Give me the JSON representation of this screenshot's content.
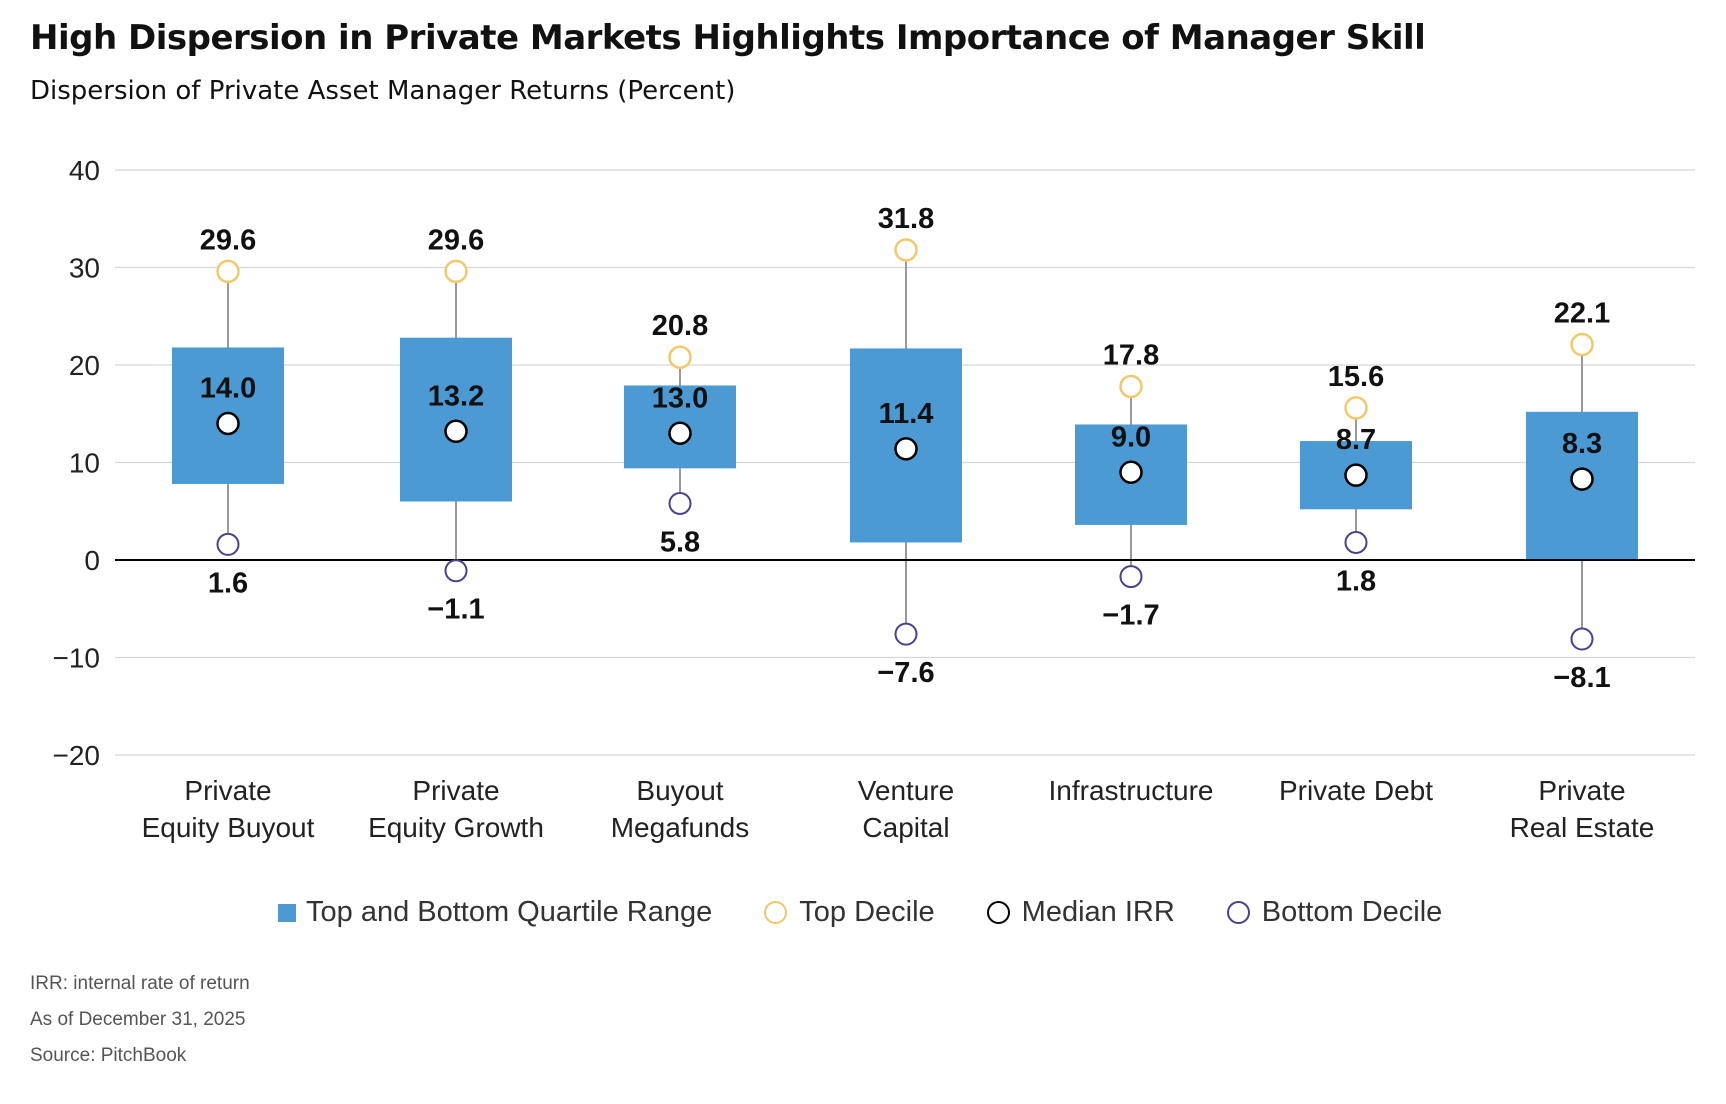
{
  "header": {
    "title": "High Dispersion in Private Markets Highlights Importance of Manager Skill",
    "subtitle": "Dispersion of Private Asset Manager Returns (Percent)"
  },
  "chart_data": {
    "type": "box",
    "ylim": [
      -20,
      40
    ],
    "yticks": [
      40,
      30,
      20,
      10,
      0,
      -10,
      -20
    ],
    "ytick_labels": [
      "40",
      "30",
      "20",
      "10",
      "0",
      "−10",
      "−20"
    ],
    "grid": true,
    "legend_position": "bottom",
    "categories": [
      {
        "label_lines": [
          "Private",
          "Equity Buyout"
        ],
        "q1": 7.8,
        "q3": 21.8,
        "median": 14.0,
        "top_decile": 29.6,
        "bottom_decile": 1.6,
        "labels": {
          "top": "29.6",
          "median": "14.0",
          "bottom": "1.6"
        }
      },
      {
        "label_lines": [
          "Private",
          "Equity Growth"
        ],
        "q1": 6.0,
        "q3": 22.8,
        "median": 13.2,
        "top_decile": 29.6,
        "bottom_decile": -1.1,
        "labels": {
          "top": "29.6",
          "median": "13.2",
          "bottom": "−1.1"
        }
      },
      {
        "label_lines": [
          "Buyout",
          "Megafunds"
        ],
        "q1": 9.4,
        "q3": 17.9,
        "median": 13.0,
        "top_decile": 20.8,
        "bottom_decile": 5.8,
        "labels": {
          "top": "20.8",
          "median": "13.0",
          "bottom": "5.8"
        }
      },
      {
        "label_lines": [
          "Venture",
          "Capital"
        ],
        "q1": 1.8,
        "q3": 21.7,
        "median": 11.4,
        "top_decile": 31.8,
        "bottom_decile": -7.6,
        "labels": {
          "top": "31.8",
          "median": "11.4",
          "bottom": "−7.6"
        }
      },
      {
        "label_lines": [
          "Infrastructure"
        ],
        "q1": 3.6,
        "q3": 13.9,
        "median": 9.0,
        "top_decile": 17.8,
        "bottom_decile": -1.7,
        "labels": {
          "top": "17.8",
          "median": "9.0",
          "bottom": "−1.7"
        }
      },
      {
        "label_lines": [
          "Private Debt"
        ],
        "q1": 5.2,
        "q3": 12.2,
        "median": 8.7,
        "top_decile": 15.6,
        "bottom_decile": 1.8,
        "labels": {
          "top": "15.6",
          "median": "8.7",
          "bottom": "1.8"
        }
      },
      {
        "label_lines": [
          "Private",
          "Real Estate"
        ],
        "q1": 0.0,
        "q3": 15.2,
        "median": 8.3,
        "top_decile": 22.1,
        "bottom_decile": -8.1,
        "labels": {
          "top": "22.1",
          "median": "8.3",
          "bottom": "−8.1"
        }
      }
    ],
    "legend": [
      {
        "label": "Top and Bottom Quartile Range",
        "kind": "box",
        "color": "#4b9ad4"
      },
      {
        "label": "Top Decile",
        "kind": "circle",
        "color": "#f2c86b"
      },
      {
        "label": "Median IRR",
        "kind": "circle",
        "color": "#000000"
      },
      {
        "label": "Bottom Decile",
        "kind": "circle",
        "color": "#4b3f8f"
      }
    ],
    "colors": {
      "box": "#4b9ad4",
      "top_decile": "#f2c86b",
      "median_stroke": "#000000",
      "bottom_decile": "#4b3f8f",
      "whisker": "#9a9a9a",
      "grid": "#d6d6d6",
      "zero_line": "#000000"
    }
  },
  "notes": {
    "line1": "IRR: internal rate of return",
    "line2": "As of December 31, 2025",
    "line3": "Source: PitchBook"
  }
}
